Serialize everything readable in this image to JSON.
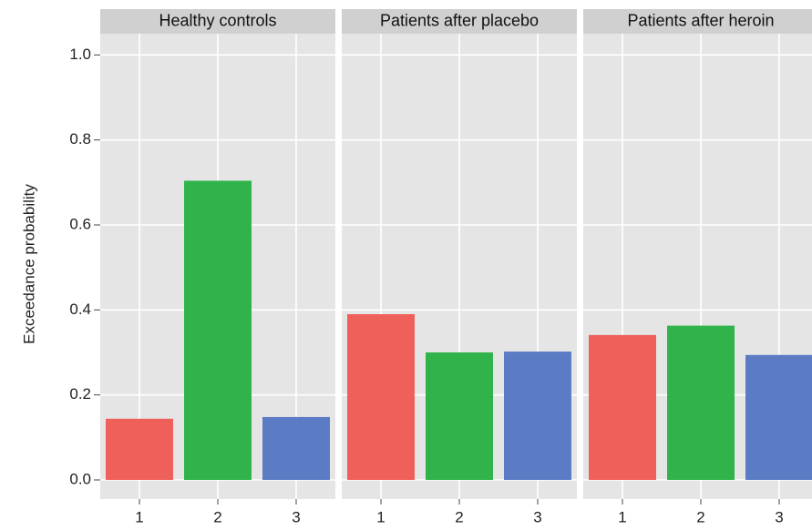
{
  "chart_data": {
    "type": "bar",
    "ylabel": "Exceedance probability",
    "ylim": [
      -0.045,
      1.05
    ],
    "yticks": [
      {
        "value": 0,
        "label": "0.0"
      },
      0.2,
      0.4,
      0.6,
      0.8,
      {
        "value": 1,
        "label": "1.0"
      }
    ],
    "grid": true,
    "colors": [
      "#f0605a",
      "#30b34a",
      "#5b7bc4"
    ],
    "panels": [
      {
        "title": "Healthy controls",
        "categories": [
          "1",
          "2",
          "3"
        ],
        "values": [
          0.144,
          0.704,
          0.148
        ]
      },
      {
        "title": "Patients after placebo",
        "categories": [
          "1",
          "2",
          "3"
        ],
        "values": [
          0.39,
          0.3,
          0.302
        ]
      },
      {
        "title": "Patients after heroin",
        "categories": [
          "1",
          "2",
          "3"
        ],
        "values": [
          0.341,
          0.363,
          0.294
        ]
      }
    ]
  }
}
